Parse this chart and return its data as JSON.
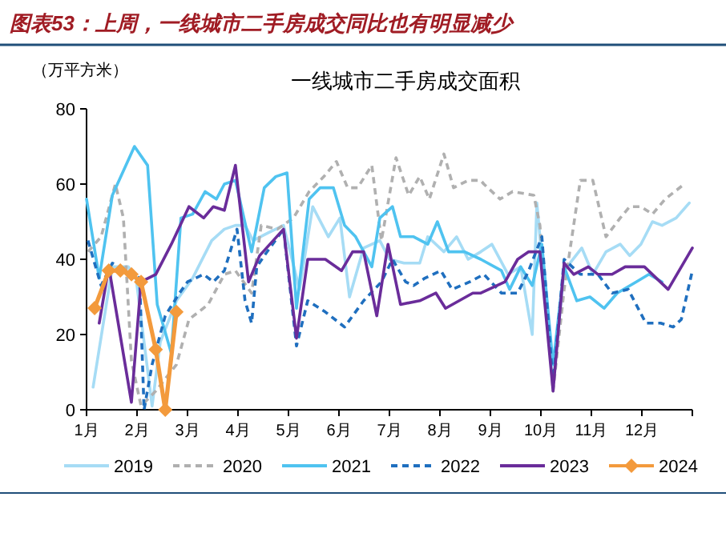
{
  "chart_data": {
    "type": "line",
    "title": "图表53：上周，一线城市二手房成交同比也有明显减少",
    "subtitle": "一线城市二手房成交面积",
    "ylabel": "（万平方米）",
    "xlim": [
      1,
      13
    ],
    "xticks": [
      {
        "value": 1,
        "label": "1月"
      },
      {
        "value": 2,
        "label": "2月"
      },
      {
        "value": 3,
        "label": "3月"
      },
      {
        "value": 4,
        "label": "4月"
      },
      {
        "value": 5,
        "label": "5月"
      },
      {
        "value": 6,
        "label": "6月"
      },
      {
        "value": 7,
        "label": "7月"
      },
      {
        "value": 8,
        "label": "8月"
      },
      {
        "value": 9,
        "label": "9月"
      },
      {
        "value": 10,
        "label": "10月"
      },
      {
        "value": 11,
        "label": "11月"
      },
      {
        "value": 12,
        "label": "12月"
      },
      {
        "value": 13,
        "label": null
      }
    ],
    "ylim": [
      0,
      80
    ],
    "yticks": [
      0,
      20,
      40,
      60,
      80
    ],
    "grid": false,
    "legend": "bottom",
    "series": [
      {
        "name": "2019",
        "color": "#a6dcf5",
        "line_style": "solid",
        "marker": "none",
        "x": [
          1.13,
          1.51,
          1.83,
          1.98,
          2.3,
          2.46,
          2.78,
          3.1,
          3.48,
          3.73,
          3.95,
          4.14,
          4.3,
          4.59,
          4.9,
          5.22,
          5.48,
          5.79,
          6.02,
          6.21,
          6.49,
          6.81,
          7.0,
          7.29,
          7.6,
          7.76,
          8.08,
          8.33,
          8.56,
          8.81,
          9.03,
          9.35,
          9.6,
          9.83,
          9.92,
          10.24,
          10.46,
          10.81,
          11.03,
          11.29,
          11.57,
          11.76,
          11.98,
          12.21,
          12.4,
          12.68,
          12.94
        ],
        "values": [
          6,
          38,
          38,
          35,
          1,
          18,
          29,
          35,
          45,
          48,
          49,
          49,
          45,
          47,
          49,
          32,
          54,
          46,
          51,
          30,
          43,
          45,
          40,
          39,
          39,
          46,
          42,
          46,
          40,
          42,
          44,
          36,
          38,
          20,
          55,
          7,
          37,
          43,
          36,
          42,
          44,
          41,
          44,
          50,
          49,
          51,
          55
        ]
      },
      {
        "name": "2020",
        "color": "#b0b0b0",
        "line_style": "dashed",
        "marker": "none",
        "x": [
          1.03,
          1.29,
          1.57,
          1.73,
          1.89,
          2.08,
          2.37,
          2.78,
          3.03,
          3.41,
          3.73,
          3.95,
          4.27,
          4.46,
          4.78,
          5.1,
          5.41,
          5.7,
          5.95,
          6.17,
          6.37,
          6.65,
          6.84,
          7.13,
          7.38,
          7.6,
          7.79,
          8.08,
          8.27,
          8.56,
          8.81,
          8.87,
          9.19,
          9.44,
          9.86,
          9.98,
          10.24,
          10.46,
          10.78,
          11.03,
          11.29,
          11.57,
          11.76,
          11.98,
          12.21,
          12.46,
          12.84
        ],
        "values": [
          42,
          46,
          60,
          51,
          13,
          1,
          5,
          12,
          24,
          28,
          36,
          37,
          31,
          49,
          48,
          51,
          58,
          62,
          66,
          59,
          59,
          65,
          45,
          67,
          57,
          62,
          56,
          68,
          59,
          61,
          61,
          60,
          56,
          58,
          57,
          49,
          5,
          32,
          61,
          61,
          46,
          51,
          54,
          54,
          52,
          56,
          60
        ]
      },
      {
        "name": "2021",
        "color": "#4fc3f0",
        "line_style": "solid",
        "marker": "none",
        "x": [
          1.0,
          1.25,
          1.51,
          1.95,
          2.21,
          2.4,
          2.68,
          2.87,
          3.1,
          3.35,
          3.57,
          3.73,
          3.95,
          4.27,
          4.52,
          4.75,
          4.97,
          5.16,
          5.41,
          5.63,
          5.89,
          6.11,
          6.33,
          6.65,
          6.81,
          7.06,
          7.22,
          7.48,
          7.76,
          7.95,
          8.17,
          8.49,
          8.81,
          9.22,
          9.38,
          9.6,
          9.83,
          10.02,
          10.24,
          10.46,
          10.71,
          10.97,
          11.25,
          11.51,
          11.89,
          12.14,
          12.4
        ],
        "values": [
          56,
          35,
          57,
          70,
          65,
          28,
          15,
          51,
          52,
          58,
          56,
          60,
          61,
          42,
          59,
          62,
          63,
          27,
          56,
          59,
          59,
          49,
          46,
          38,
          51,
          54,
          46,
          46,
          44,
          50,
          42,
          42,
          40,
          37,
          32,
          38,
          33,
          44,
          12,
          38,
          29,
          30,
          27,
          31,
          34,
          36,
          34
        ]
      },
      {
        "name": "2022",
        "color": "#1f6fbf",
        "line_style": "dashed",
        "marker": "none",
        "x": [
          1.03,
          1.29,
          1.51,
          1.83,
          2.05,
          2.14,
          2.3,
          2.56,
          2.84,
          3.0,
          3.32,
          3.51,
          3.73,
          3.98,
          4.14,
          4.27,
          4.37,
          4.52,
          4.9,
          5.16,
          5.38,
          5.73,
          6.11,
          6.49,
          6.84,
          7.06,
          7.32,
          7.48,
          7.7,
          8.02,
          8.24,
          8.59,
          8.87,
          9.22,
          9.54,
          9.76,
          10.02,
          10.24,
          10.46,
          10.78,
          11.13,
          11.41,
          11.73,
          12.08,
          12.37,
          12.62,
          12.78,
          13.0
        ],
        "values": [
          45,
          33,
          39,
          37,
          35,
          0,
          12,
          25,
          31,
          34,
          36,
          34,
          37,
          48,
          29,
          23,
          38,
          41,
          48,
          17,
          29,
          26,
          22,
          29,
          34,
          40,
          34,
          33,
          35,
          37,
          32,
          34,
          36,
          31,
          31,
          37,
          46,
          7,
          40,
          36,
          36,
          31,
          32,
          23,
          23,
          22,
          24,
          37
        ]
      },
      {
        "name": "2023",
        "color": "#6a2c9a",
        "line_style": "solid",
        "marker": "none",
        "x": [
          1.25,
          1.44,
          1.89,
          2.08,
          2.37,
          2.68,
          3.03,
          3.32,
          3.51,
          3.73,
          3.95,
          4.21,
          4.43,
          4.9,
          5.16,
          5.38,
          5.73,
          6.05,
          6.27,
          6.49,
          6.75,
          6.97,
          7.22,
          7.6,
          7.92,
          8.11,
          8.65,
          8.81,
          9.29,
          9.54,
          9.76,
          9.98,
          10.24,
          10.46,
          10.65,
          10.94,
          11.13,
          11.41,
          11.67,
          12.05,
          12.52,
          13.0
        ],
        "values": [
          23,
          38,
          2,
          34,
          36,
          44,
          54,
          51,
          54,
          53,
          65,
          34,
          41,
          48,
          19,
          40,
          40,
          37,
          42,
          42,
          25,
          44,
          28,
          29,
          31,
          27,
          31,
          31,
          34,
          40,
          42,
          42,
          5,
          39,
          36,
          38,
          36,
          36,
          38,
          38,
          32,
          43
        ]
      },
      {
        "name": "2024",
        "color": "#f39a3c",
        "line_style": "solid",
        "marker": "diamond",
        "x": [
          1.16,
          1.44,
          1.67,
          1.89,
          2.08,
          2.37,
          2.56,
          2.78
        ],
        "values": [
          27,
          37,
          37,
          36,
          34,
          16,
          0,
          26
        ]
      }
    ]
  }
}
